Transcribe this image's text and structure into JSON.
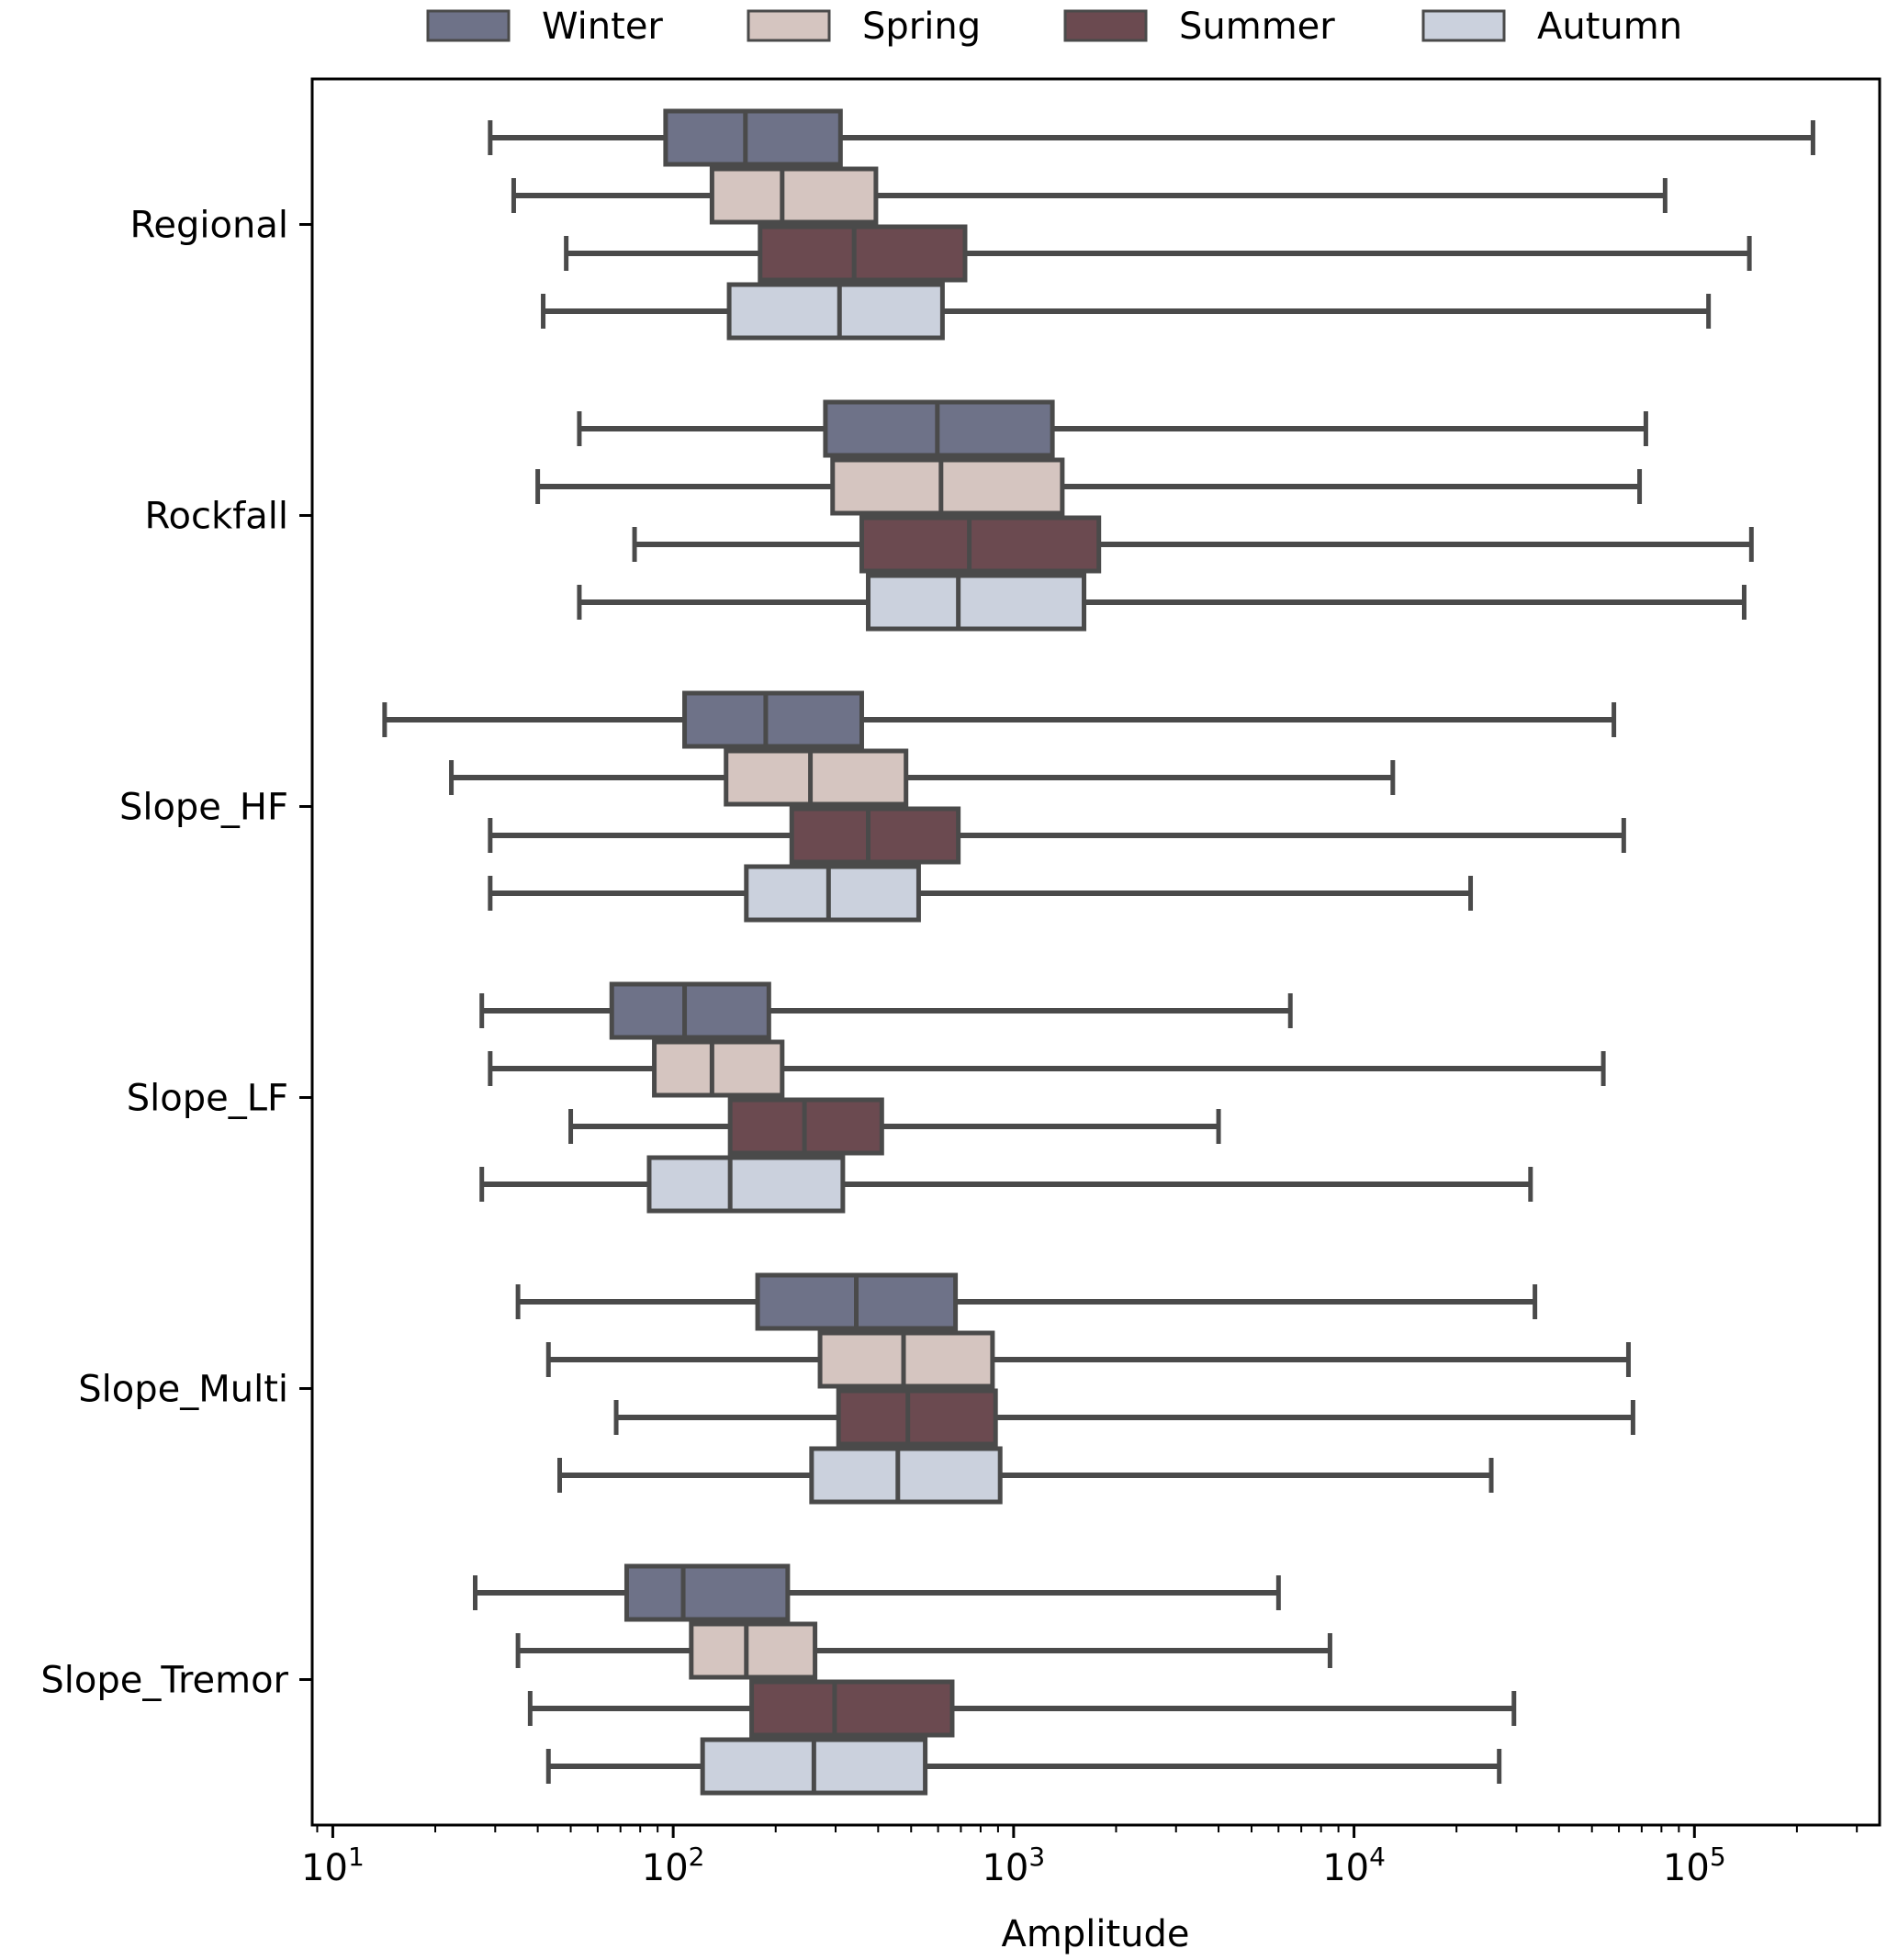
{
  "chart_data": {
    "type": "boxplot-horizontal",
    "title": "",
    "xlabel": "Amplitude",
    "ylabel": "",
    "xscale": "log",
    "xlim": [
      8.7,
      350000
    ],
    "x_ticks": [
      {
        "value": 10,
        "base": "10",
        "exp": "1"
      },
      {
        "value": 100,
        "base": "10",
        "exp": "2"
      },
      {
        "value": 1000,
        "base": "10",
        "exp": "3"
      },
      {
        "value": 10000,
        "base": "10",
        "exp": "4"
      },
      {
        "value": 100000,
        "base": "10",
        "exp": "5"
      }
    ],
    "grid": false,
    "legend": {
      "placement": "top-center-outside",
      "entries": [
        "Winter",
        "Spring",
        "Summer",
        "Autumn"
      ]
    },
    "colors": {
      "Winter": "#6e7288",
      "Spring": "#d5c5c0",
      "Summer": "#6b4a50",
      "Autumn": "#cbd1dd",
      "edge": "#4a4a4a"
    },
    "categories": [
      "Regional",
      "Rockfall",
      "Slope_HF",
      "Slope_LF",
      "Slope_Multi",
      "Slope_Tremor"
    ],
    "series": [
      {
        "name": "Winter",
        "boxes": [
          {
            "whislo": 29,
            "q1": 95,
            "med": 163,
            "q3": 310,
            "whishi": 223000
          },
          {
            "whislo": 53,
            "q1": 280,
            "med": 597,
            "q3": 1300,
            "whishi": 72000
          },
          {
            "whislo": 14.2,
            "q1": 108,
            "med": 187,
            "q3": 358,
            "whishi": 58000
          },
          {
            "whislo": 27.4,
            "q1": 66,
            "med": 108,
            "q3": 191,
            "whishi": 6500
          },
          {
            "whislo": 35,
            "q1": 177,
            "med": 345,
            "q3": 675,
            "whishi": 34000
          },
          {
            "whislo": 26.2,
            "q1": 73,
            "med": 107,
            "q3": 217,
            "whishi": 6000
          }
        ]
      },
      {
        "name": "Spring",
        "boxes": [
          {
            "whislo": 34,
            "q1": 130,
            "med": 209,
            "q3": 394,
            "whishi": 82000
          },
          {
            "whislo": 40,
            "q1": 294,
            "med": 612,
            "q3": 1390,
            "whishi": 69000
          },
          {
            "whislo": 22.3,
            "q1": 143,
            "med": 253,
            "q3": 483,
            "whishi": 13000
          },
          {
            "whislo": 29,
            "q1": 88,
            "med": 130,
            "q3": 209,
            "whishi": 54000
          },
          {
            "whislo": 43,
            "q1": 270,
            "med": 475,
            "q3": 867,
            "whishi": 64000
          },
          {
            "whislo": 35,
            "q1": 113,
            "med": 164,
            "q3": 261,
            "whishi": 8500
          }
        ]
      },
      {
        "name": "Summer",
        "boxes": [
          {
            "whislo": 48.5,
            "q1": 180,
            "med": 340,
            "q3": 720,
            "whishi": 145000
          },
          {
            "whislo": 77,
            "q1": 358,
            "med": 741,
            "q3": 1780,
            "whishi": 147000
          },
          {
            "whislo": 29,
            "q1": 223,
            "med": 374,
            "q3": 688,
            "whishi": 62000
          },
          {
            "whislo": 50,
            "q1": 147,
            "med": 243,
            "q3": 410,
            "whishi": 4000
          },
          {
            "whislo": 68,
            "q1": 306,
            "med": 489,
            "q3": 885,
            "whishi": 66000
          },
          {
            "whislo": 38,
            "q1": 170,
            "med": 298,
            "q3": 660,
            "whishi": 29500
          }
        ]
      },
      {
        "name": "Autumn",
        "boxes": [
          {
            "whislo": 41.5,
            "q1": 146,
            "med": 308,
            "q3": 618,
            "whishi": 110000
          },
          {
            "whislo": 53,
            "q1": 374,
            "med": 688,
            "q3": 1610,
            "whishi": 140000
          },
          {
            "whislo": 29,
            "q1": 164,
            "med": 286,
            "q3": 526,
            "whishi": 22000
          },
          {
            "whislo": 27.4,
            "q1": 85,
            "med": 147,
            "q3": 315,
            "whishi": 33000
          },
          {
            "whislo": 46.4,
            "q1": 255,
            "med": 457,
            "q3": 913,
            "whishi": 25300
          },
          {
            "whislo": 43,
            "q1": 122,
            "med": 259,
            "q3": 550,
            "whishi": 26700
          }
        ]
      }
    ]
  }
}
